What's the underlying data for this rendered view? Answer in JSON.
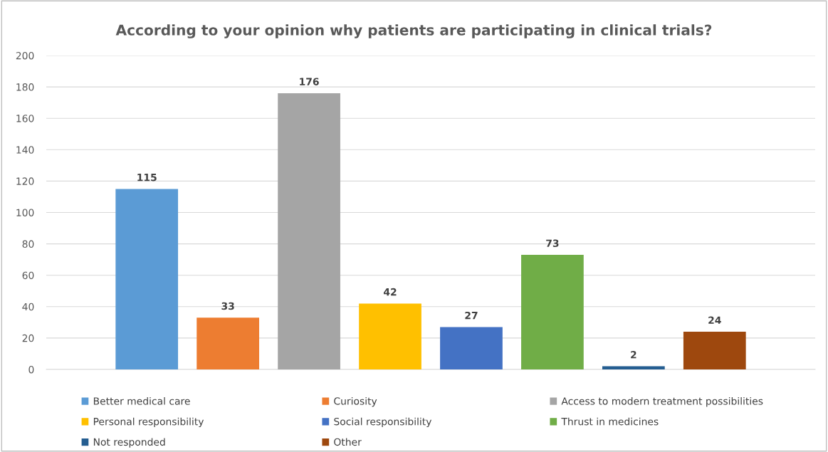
{
  "chart_data": {
    "type": "bar",
    "title": "According to your opinion why patients are participating in clinical trials?",
    "categories": [
      null
    ],
    "series": [
      {
        "name": "Better medical care",
        "color": "#5b9bd5",
        "values": [
          115
        ]
      },
      {
        "name": "Curiosity",
        "color": "#ed7d31",
        "values": [
          33
        ]
      },
      {
        "name": "Access to modern treatment possibilities",
        "color": "#a5a5a5",
        "values": [
          176
        ]
      },
      {
        "name": "Personal responsibility",
        "color": "#ffc000",
        "values": [
          42
        ]
      },
      {
        "name": "Social responsibility",
        "color": "#4472c4",
        "values": [
          27
        ]
      },
      {
        "name": "Thrust in medicines",
        "color": "#70ad47",
        "values": [
          73
        ]
      },
      {
        "name": "Not responded",
        "color": "#255e91",
        "values": [
          2
        ]
      },
      {
        "name": "Other",
        "color": "#9e480e",
        "values": [
          24
        ]
      }
    ],
    "ylim": [
      0,
      200
    ],
    "yticks": [
      0,
      20,
      40,
      60,
      80,
      100,
      120,
      140,
      160,
      180,
      200
    ],
    "grid": "y",
    "legend": "bottom",
    "data_labels": true
  }
}
